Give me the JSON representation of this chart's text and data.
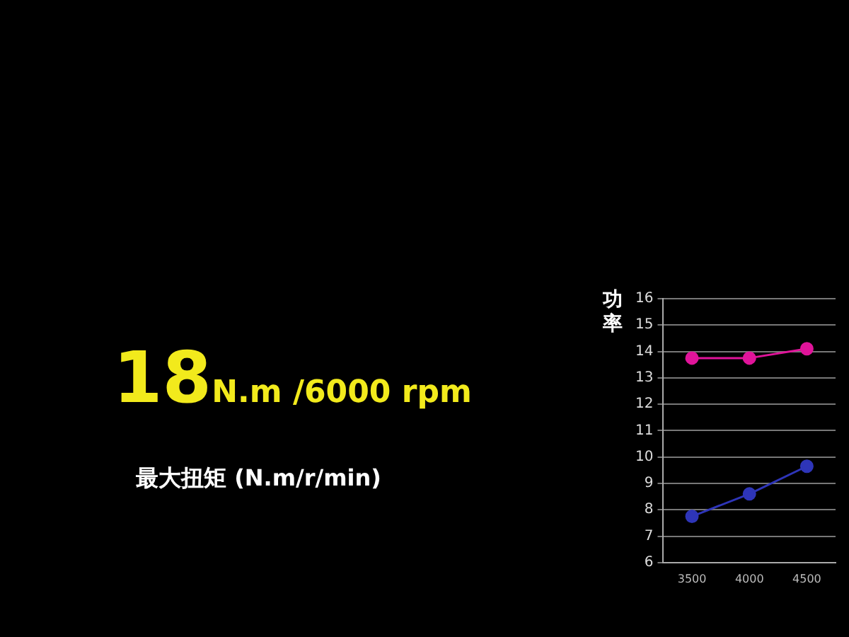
{
  "chart_data": {
    "type": "line",
    "ylabel": "功率",
    "x": [
      3500,
      4000,
      4500
    ],
    "xlim": [
      3250,
      4750
    ],
    "xticks": [
      3500,
      4000,
      4500
    ],
    "ylim": [
      6,
      16
    ],
    "yticks": [
      6,
      7,
      8,
      9,
      10,
      11,
      12,
      13,
      14,
      15,
      16
    ],
    "grid": "y",
    "marker": "circle",
    "legend": false,
    "series": [
      {
        "color": "#e0149a",
        "values": [
          13.75,
          13.75,
          14.1
        ]
      },
      {
        "color": "#2e35b8",
        "values": [
          7.75,
          8.6,
          9.65
        ]
      }
    ],
    "annotations": [
      "18N.m /6000 rpm",
      "最大扭矩 (N.m/r/min)"
    ]
  }
}
